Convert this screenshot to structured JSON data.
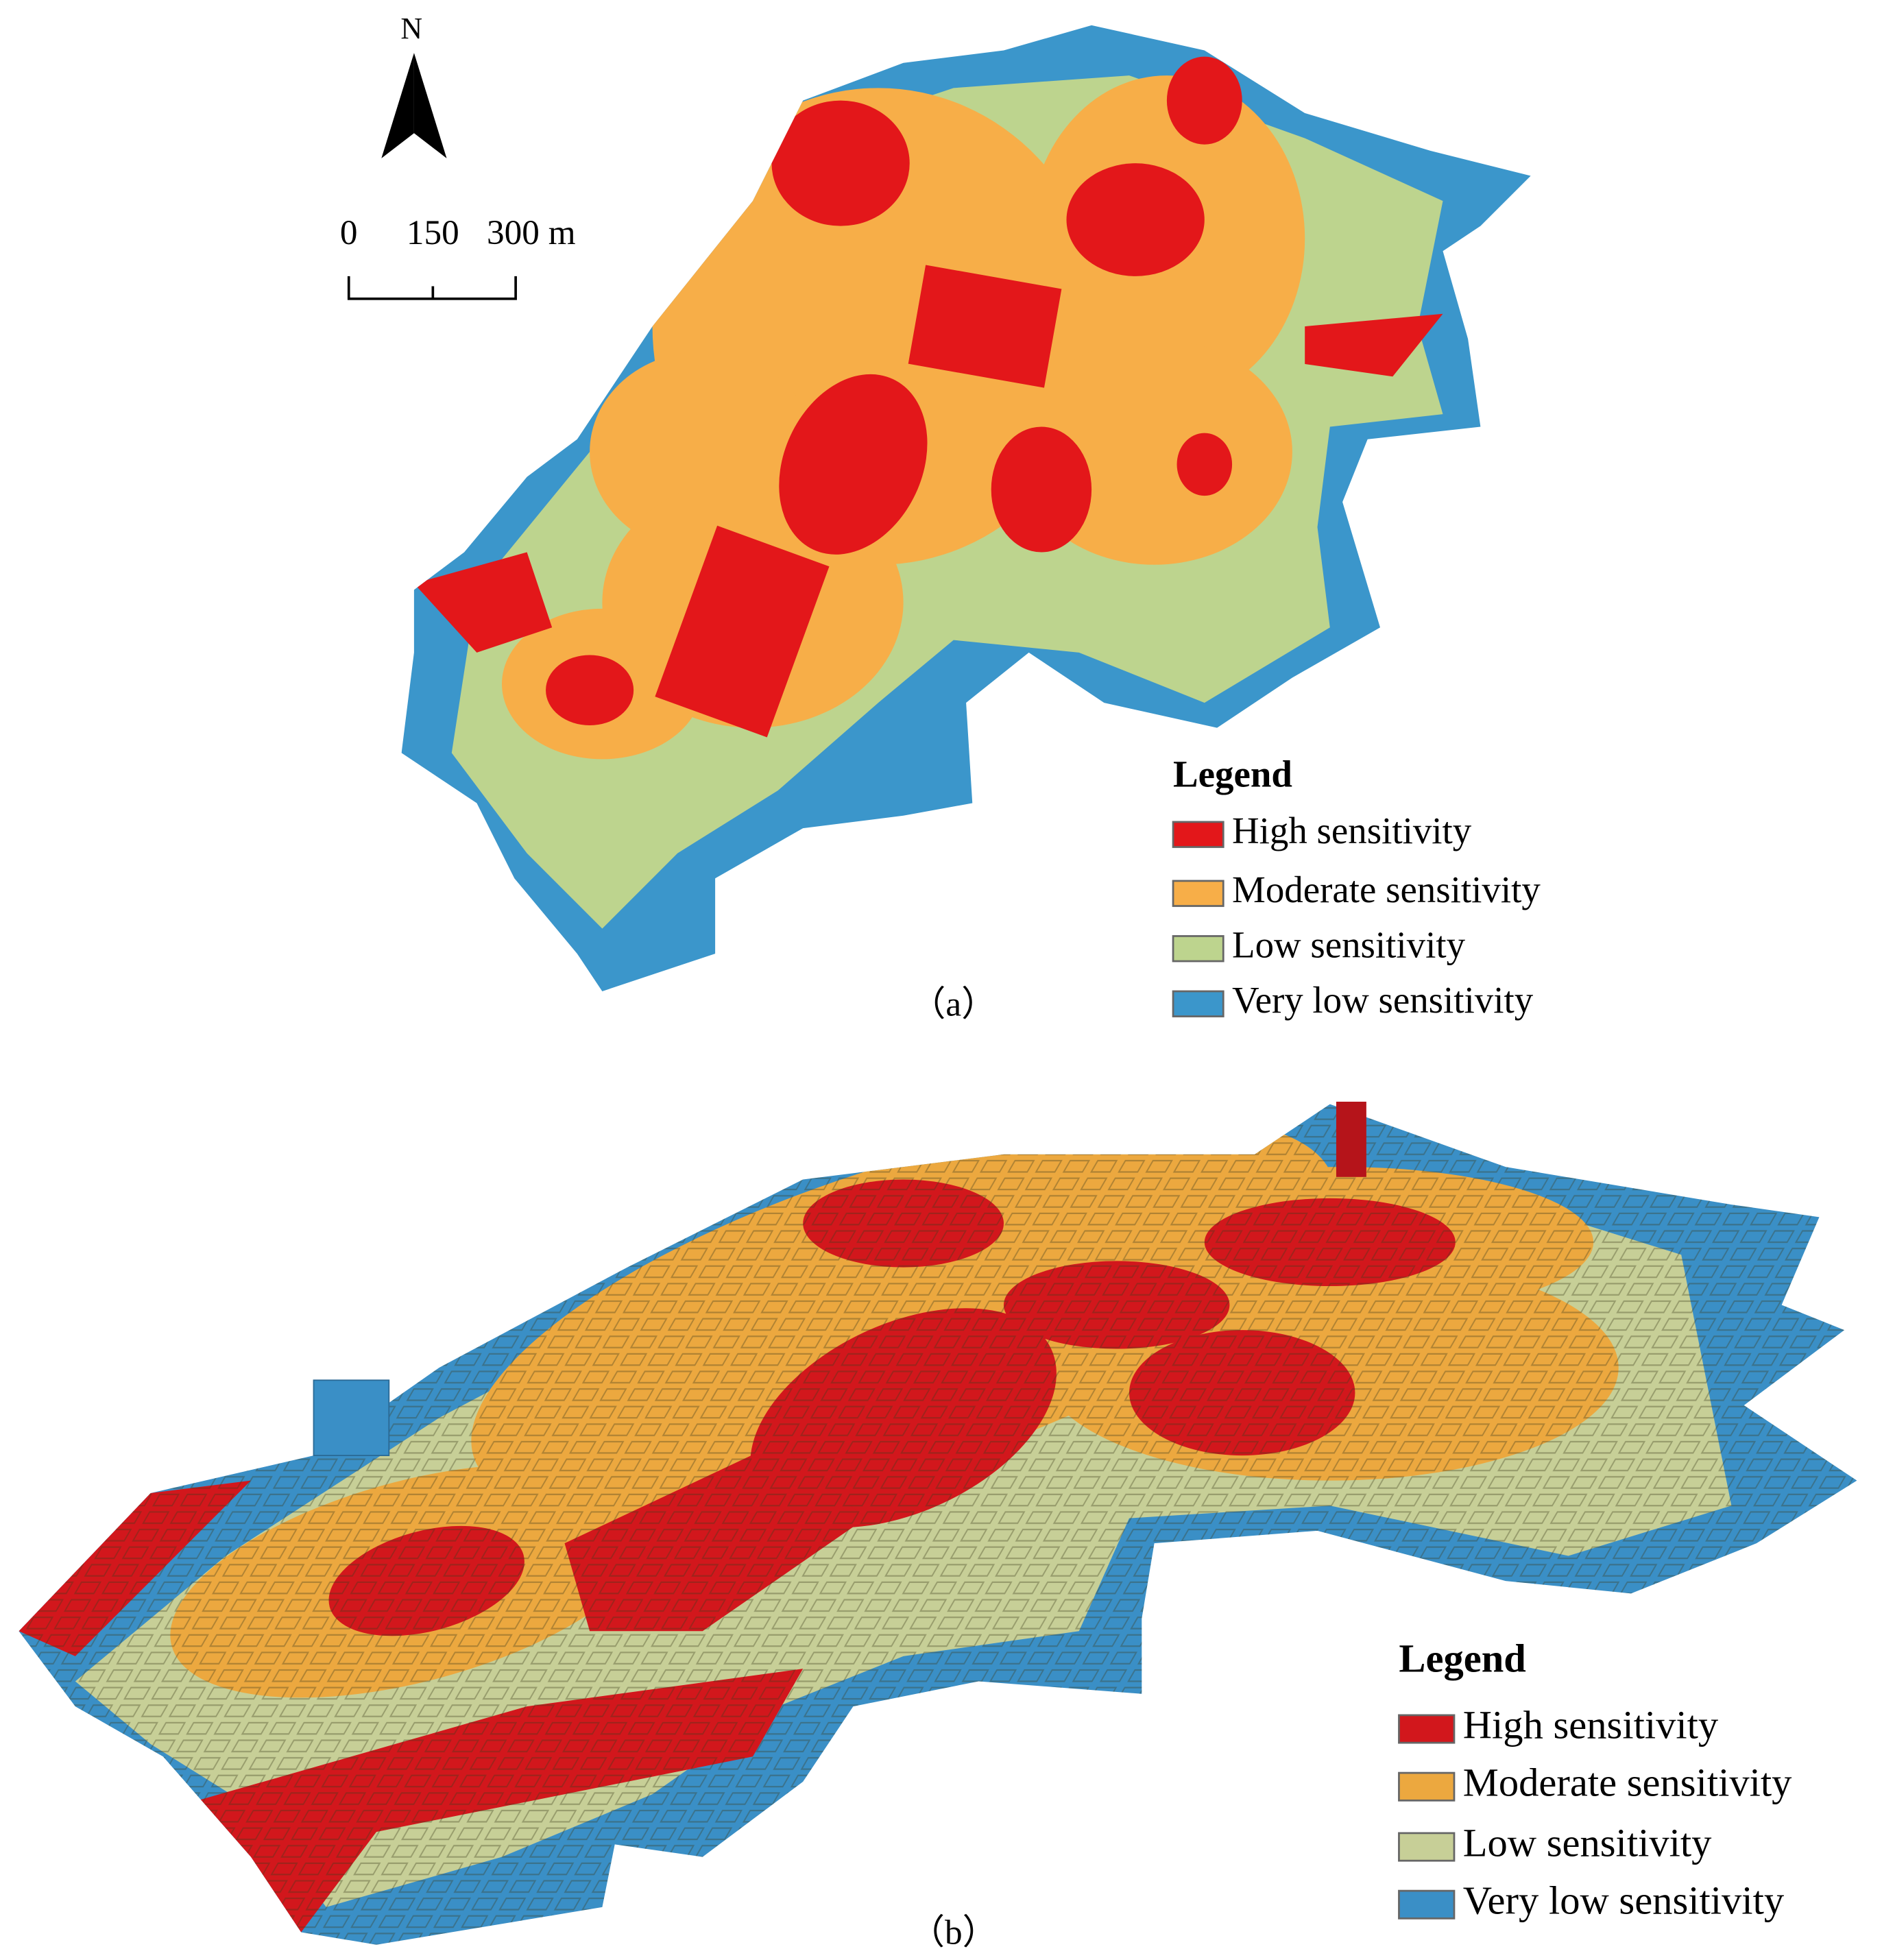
{
  "north": "N",
  "scale_bar": {
    "labels": [
      "0",
      "150",
      "300 m"
    ]
  },
  "panels": [
    {
      "caption": "（a）",
      "legend": {
        "title": "Legend",
        "items": [
          {
            "label": "High sensitivity",
            "color": "#e3171a"
          },
          {
            "label": "Moderate sensitivity",
            "color": "#f7ae48"
          },
          {
            "label": "Low sensitivity",
            "color": "#bdd48e"
          },
          {
            "label": "Very low sensitivity",
            "color": "#3b96cb"
          }
        ]
      }
    },
    {
      "caption": "（b）",
      "legend": {
        "title": "Legend",
        "items": [
          {
            "label": "High sensitivity",
            "color": "#d2171c"
          },
          {
            "label": "Moderate sensitivity",
            "color": "#eca83f"
          },
          {
            "label": "Low sensitivity",
            "color": "#c7cf97"
          },
          {
            "label": "Very low sensitivity",
            "color": "#3a8fc6"
          }
        ]
      }
    }
  ]
}
